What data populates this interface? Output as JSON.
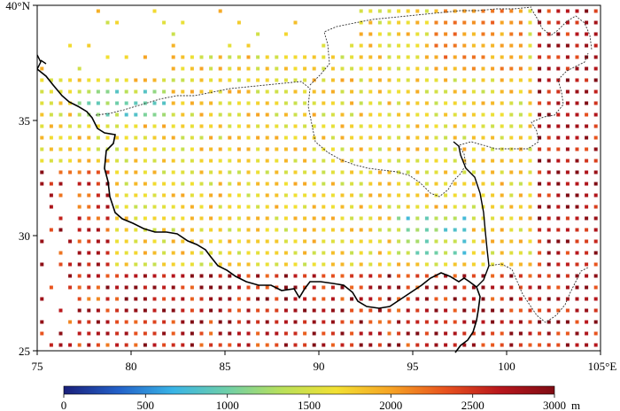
{
  "map": {
    "lon_range": [
      75,
      105
    ],
    "lat_range": [
      25,
      40
    ],
    "x_ticks": [
      "75",
      "80",
      "85",
      "90",
      "95",
      "100",
      "105°E"
    ],
    "y_ticks": [
      "40°N",
      "35",
      "30",
      "25"
    ],
    "grid_step_deg": 0.5,
    "cell_note": "gridded point values colored by elevation-like quantity"
  },
  "colorbar": {
    "min": 0,
    "max": 3000,
    "tick_labels": [
      "0",
      "500",
      "1000",
      "1500",
      "2000",
      "2500",
      "3000"
    ],
    "unit": "m",
    "stops": [
      "#1a1f7a",
      "#2360c8",
      "#39b4e6",
      "#6fcfa8",
      "#b9e05a",
      "#f2e032",
      "#f6a324",
      "#e8521e",
      "#b8161c",
      "#7f0c14"
    ]
  },
  "colors": {
    "border_black": "#000000",
    "border_dash": "#333333"
  }
}
